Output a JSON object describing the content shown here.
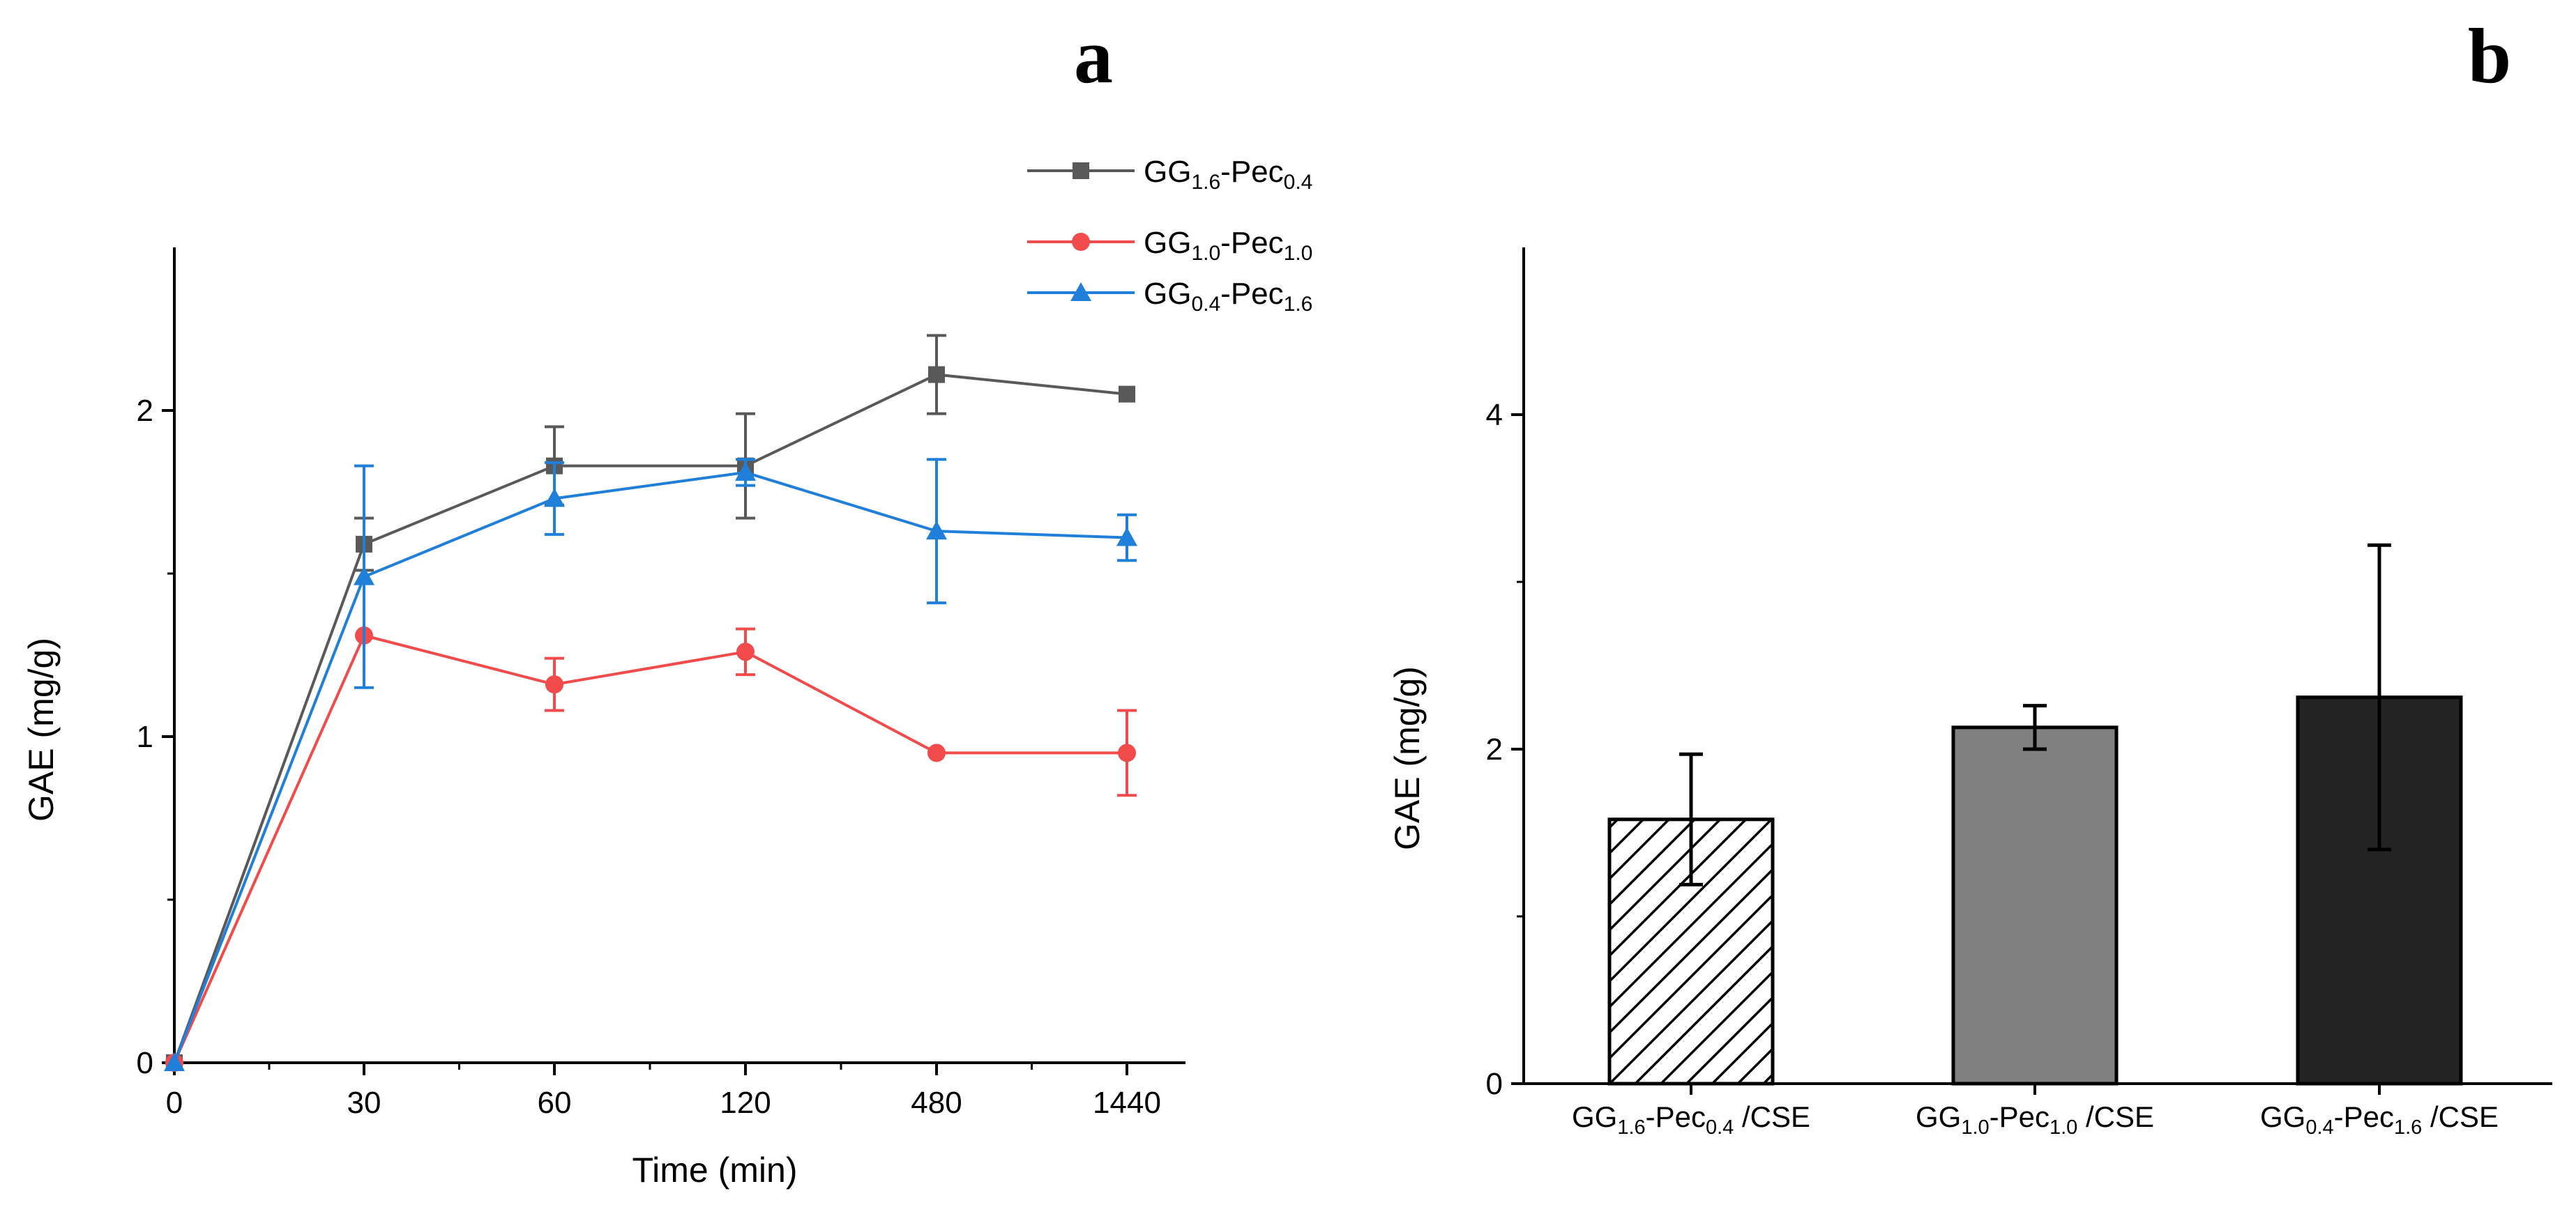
{
  "chart_data": [
    {
      "type": "line",
      "panel_label": "a",
      "categories": [
        "0",
        "30",
        "60",
        "120",
        "480",
        "1440"
      ],
      "xlabel": "Time (min)",
      "ylabel": "GAE (mg/g)",
      "ylim": [
        0,
        2.5
      ],
      "yticks": [
        "0",
        "1",
        "2"
      ],
      "legend_position": "top-right",
      "series": [
        {
          "name": "GG1.6-Pec0.4",
          "label_parts": {
            "a": "GG",
            "sa": "1.6",
            "b": "-Pec",
            "sb": "0.4"
          },
          "color": "#595959",
          "marker": "square",
          "values": [
            0,
            1.59,
            1.83,
            1.83,
            2.11,
            2.05
          ],
          "errors": [
            0,
            0.08,
            0.12,
            0.16,
            0.12,
            0
          ]
        },
        {
          "name": "GG1.0-Pec1.0",
          "label_parts": {
            "a": "GG",
            "sa": "1.0",
            "b": "-Pec",
            "sb": "1.0"
          },
          "color": "#f24b4b",
          "marker": "circle",
          "values": [
            0,
            1.31,
            1.16,
            1.26,
            0.95,
            0.95
          ],
          "errors": [
            0,
            0,
            0.08,
            0.07,
            0,
            0.13
          ]
        },
        {
          "name": "GG0.4-Pec1.6",
          "label_parts": {
            "a": "GG",
            "sa": "0.4",
            "b": "-Pec",
            "sb": "1.6"
          },
          "color": "#1f7fd9",
          "marker": "triangle",
          "values": [
            0,
            1.49,
            1.73,
            1.81,
            1.63,
            1.61
          ],
          "errors": [
            0,
            0.34,
            0.11,
            0.04,
            0.22,
            0.07
          ]
        }
      ]
    },
    {
      "type": "bar",
      "panel_label": "b",
      "categories": [
        {
          "name": "GG1.6-Pec0.4 /CSE",
          "a": "GG",
          "sa": "1.6",
          "b": "-Pec",
          "sb": "0.4",
          "c": " /CSE"
        },
        {
          "name": "GG1.0-Pec1.0 /CSE",
          "a": "GG",
          "sa": "1.0",
          "b": "-Pec",
          "sb": "1.0",
          "c": " /CSE"
        },
        {
          "name": "GG0.4-Pec1.6 /CSE",
          "a": "GG",
          "sa": "0.4",
          "b": "-Pec",
          "sb": "1.6",
          "c": " /CSE"
        }
      ],
      "values": [
        1.58,
        2.13,
        2.31
      ],
      "errors": [
        0.39,
        0.13,
        0.91
      ],
      "fills": [
        "hatch",
        "#808080",
        "#232323"
      ],
      "xlabel": "",
      "ylabel": "GAE (mg/g)",
      "ylim": [
        0,
        5
      ],
      "yticks": [
        "0",
        "2",
        "4"
      ]
    }
  ]
}
